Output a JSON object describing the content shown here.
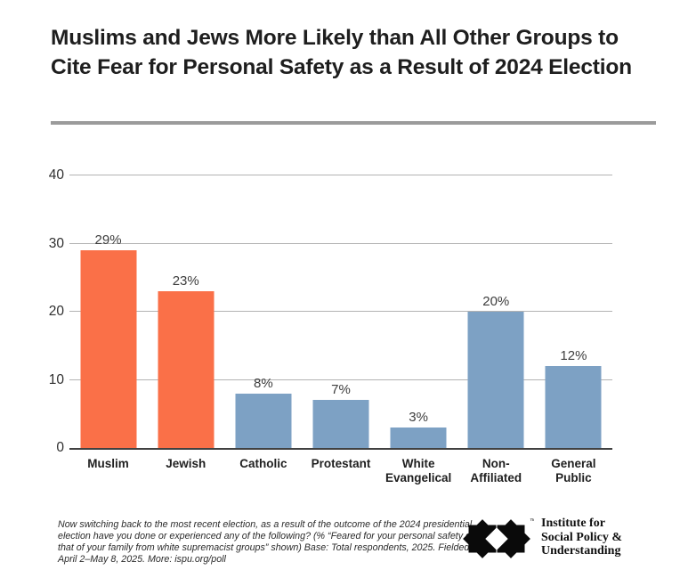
{
  "title": "Muslims and Jews More Likely than All Other Groups to Cite Fear for Personal Safety as a Result of 2024 Election",
  "chart_data": {
    "type": "bar",
    "title": "Muslims and Jews More Likely than All Other Groups to Cite Fear for Personal Safety as a Result of 2024 Election",
    "categories": [
      "Muslim",
      "Jewish",
      "Catholic",
      "Protestant",
      "White Evangelical",
      "Non-Affiliated",
      "General Public"
    ],
    "category_lines": [
      [
        "Muslim"
      ],
      [
        "Jewish"
      ],
      [
        "Catholic"
      ],
      [
        "Protestant"
      ],
      [
        "White",
        "Evangelical"
      ],
      [
        "Non-Affiliated"
      ],
      [
        "General",
        "Public"
      ]
    ],
    "values": [
      29,
      23,
      8,
      7,
      3,
      20,
      12
    ],
    "value_labels": [
      "29%",
      "23%",
      "8%",
      "7%",
      "3%",
      "20%",
      "12%"
    ],
    "bar_colors": [
      "#FA7048",
      "#FA7048",
      "#7DA1C4",
      "#7DA1C4",
      "#7DA1C4",
      "#7DA1C4",
      "#7DA1C4"
    ],
    "xlabel": "",
    "ylabel": "",
    "ylim": [
      0,
      40
    ],
    "yticks": [
      0,
      10,
      20,
      30,
      40
    ],
    "grid": true,
    "legend": "none"
  },
  "colors": {
    "highlight_orange": "#FA7048",
    "bar_blue": "#7DA1C4",
    "gridline": "#b3b3b3",
    "axis_line": "#414141",
    "divider": "#9b9b9b",
    "title_text": "#1e1e1e"
  },
  "footnote": "Now switching back to the most recent election, as a result of the outcome of the 2024 presidential election have you done or experienced any of the following? (% “Feared for your personal safety or that of your family from white supremacist groups” shown) Base: Total respondents, 2025. Fielded April 2–May 8, 2025. More: ispu.org/poll",
  "logo": {
    "trademark": "™",
    "lines": [
      "Institute for",
      "Social Policy &",
      "Understanding"
    ],
    "name": "Institute for Social Policy & Understanding"
  }
}
